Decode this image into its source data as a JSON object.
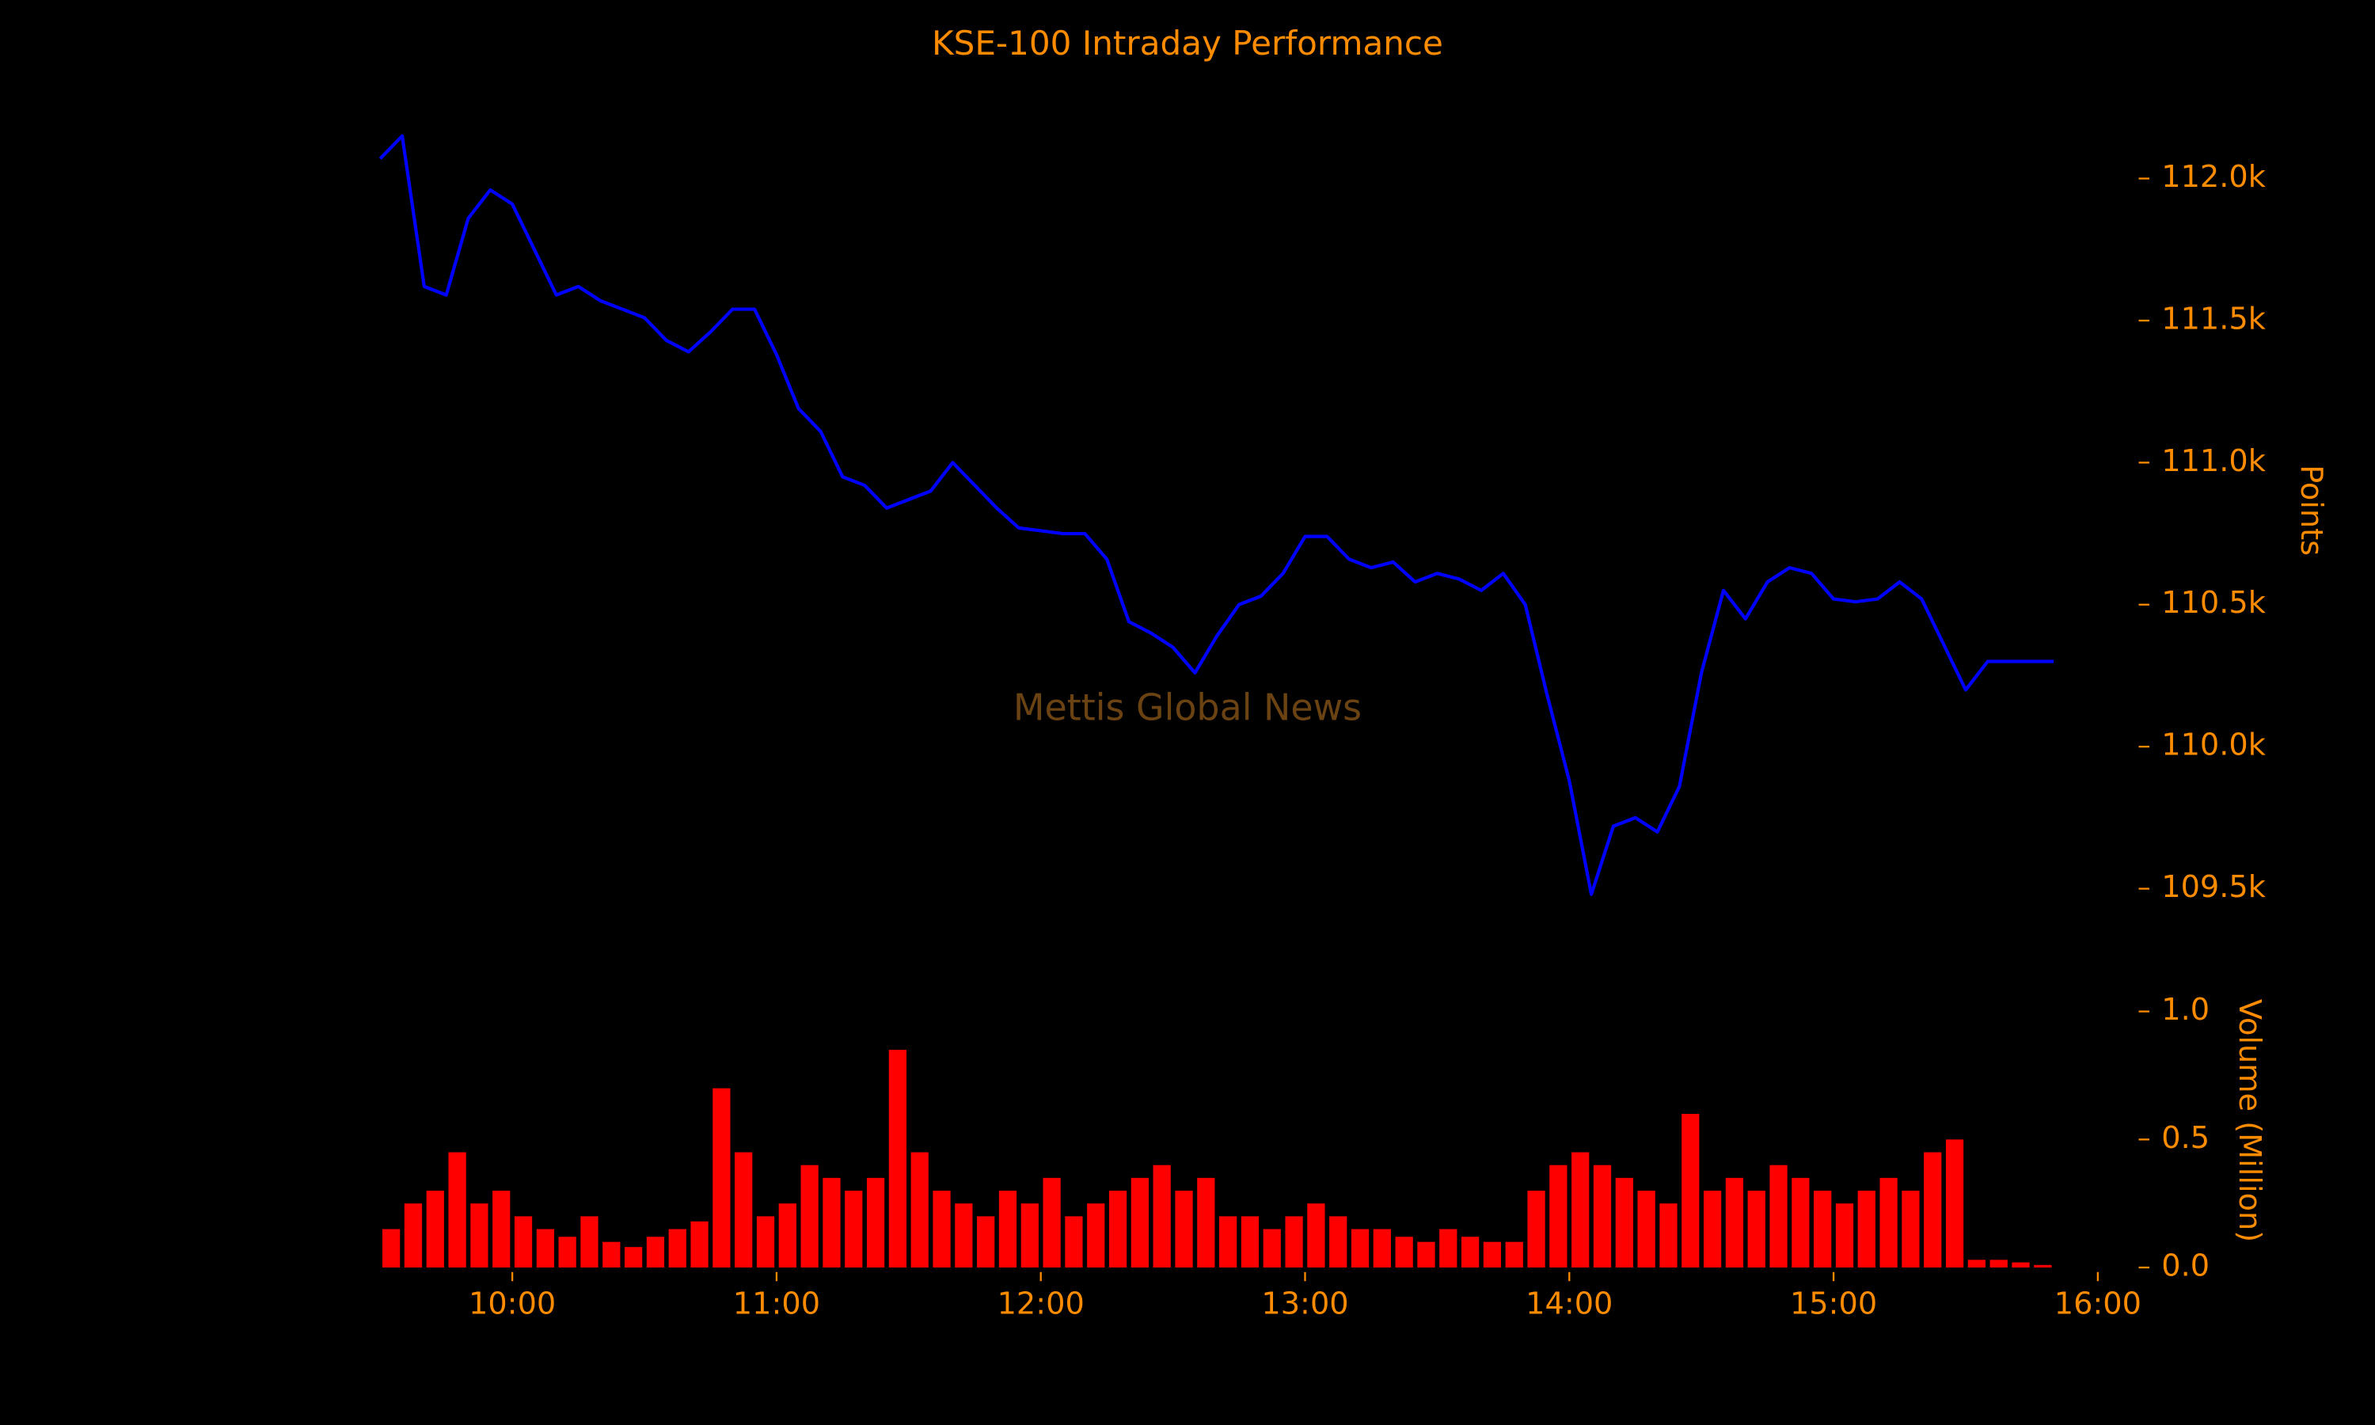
{
  "chart_data": [
    {
      "type": "line",
      "title": "KSE-100 Intraday Performance",
      "annotation": "Mettis Global News",
      "ylabel": "Points",
      "x": [
        "09:30",
        "09:35",
        "09:40",
        "09:45",
        "09:50",
        "09:55",
        "10:00",
        "10:05",
        "10:10",
        "10:15",
        "10:20",
        "10:25",
        "10:30",
        "10:35",
        "10:40",
        "10:45",
        "10:50",
        "10:55",
        "11:00",
        "11:05",
        "11:10",
        "11:15",
        "11:20",
        "11:25",
        "11:30",
        "11:35",
        "11:40",
        "11:45",
        "11:50",
        "11:55",
        "12:00",
        "12:05",
        "12:10",
        "12:15",
        "12:20",
        "12:25",
        "12:30",
        "12:35",
        "12:40",
        "12:45",
        "12:50",
        "12:55",
        "13:00",
        "13:05",
        "13:10",
        "13:15",
        "13:20",
        "13:25",
        "13:30",
        "13:35",
        "13:40",
        "13:45",
        "13:50",
        "13:55",
        "14:00",
        "14:05",
        "14:10",
        "14:15",
        "14:20",
        "14:25",
        "14:30",
        "14:35",
        "14:40",
        "14:45",
        "14:50",
        "14:55",
        "15:00",
        "15:05",
        "15:10",
        "15:15",
        "15:20",
        "15:25",
        "15:30",
        "15:35",
        "15:40",
        "15:45",
        "15:50"
      ],
      "series": [
        {
          "name": "KSE-100",
          "color": "#0000ff",
          "values": [
            112070,
            112150,
            111620,
            111590,
            111860,
            111960,
            111910,
            111750,
            111590,
            111620,
            111570,
            111540,
            111510,
            111430,
            111390,
            111460,
            111540,
            111540,
            111380,
            111190,
            111110,
            110950,
            110920,
            110840,
            110870,
            110900,
            111000,
            110920,
            110840,
            110770,
            110760,
            110750,
            110750,
            110660,
            110440,
            110400,
            110350,
            110260,
            110390,
            110500,
            110530,
            110610,
            110740,
            110740,
            110660,
            110630,
            110650,
            110580,
            110610,
            110590,
            110550,
            110610,
            110500,
            110180,
            109880,
            109480,
            109720,
            109750,
            109700,
            109860,
            110260,
            110550,
            110450,
            110580,
            110630,
            110610,
            110520,
            110510,
            110520,
            110580,
            110520,
            110360,
            110200,
            110300,
            110300,
            110300,
            110300
          ]
        }
      ],
      "xlim": [
        "09:30",
        "16:00"
      ],
      "ylim": [
        109350,
        112250
      ],
      "yticks": [
        {
          "value": 109500,
          "label": "109.5k"
        },
        {
          "value": 110000,
          "label": "110.0k"
        },
        {
          "value": 110500,
          "label": "110.5k"
        },
        {
          "value": 111000,
          "label": "111.0k"
        },
        {
          "value": 111500,
          "label": "111.5k"
        },
        {
          "value": 112000,
          "label": "112.0k"
        }
      ]
    },
    {
      "type": "bar",
      "ylabel": "Volume (Million)",
      "color": "#ff0000",
      "x": [
        "09:30",
        "09:35",
        "09:40",
        "09:45",
        "09:50",
        "09:55",
        "10:00",
        "10:05",
        "10:10",
        "10:15",
        "10:20",
        "10:25",
        "10:30",
        "10:35",
        "10:40",
        "10:45",
        "10:50",
        "10:55",
        "11:00",
        "11:05",
        "11:10",
        "11:15",
        "11:20",
        "11:25",
        "11:30",
        "11:35",
        "11:40",
        "11:45",
        "11:50",
        "11:55",
        "12:00",
        "12:05",
        "12:10",
        "12:15",
        "12:20",
        "12:25",
        "12:30",
        "12:35",
        "12:40",
        "12:45",
        "12:50",
        "12:55",
        "13:00",
        "13:05",
        "13:10",
        "13:15",
        "13:20",
        "13:25",
        "13:30",
        "13:35",
        "13:40",
        "13:45",
        "13:50",
        "13:55",
        "14:00",
        "14:05",
        "14:10",
        "14:15",
        "14:20",
        "14:25",
        "14:30",
        "14:35",
        "14:40",
        "14:45",
        "14:50",
        "14:55",
        "15:00",
        "15:05",
        "15:10",
        "15:15",
        "15:20",
        "15:25",
        "15:30",
        "15:35",
        "15:40",
        "15:45",
        "15:50"
      ],
      "values": [
        0.15,
        0.25,
        0.3,
        0.45,
        0.25,
        0.3,
        0.2,
        0.15,
        0.12,
        0.2,
        0.1,
        0.08,
        0.12,
        0.15,
        0.18,
        0.7,
        0.45,
        0.2,
        0.25,
        0.4,
        0.35,
        0.3,
        0.35,
        0.85,
        0.45,
        0.3,
        0.25,
        0.2,
        0.3,
        0.25,
        0.35,
        0.2,
        0.25,
        0.3,
        0.35,
        0.4,
        0.3,
        0.35,
        0.2,
        0.2,
        0.15,
        0.2,
        0.25,
        0.2,
        0.15,
        0.15,
        0.12,
        0.1,
        0.15,
        0.12,
        0.1,
        0.1,
        0.3,
        0.4,
        0.45,
        0.4,
        0.35,
        0.3,
        0.25,
        0.6,
        0.3,
        0.35,
        0.3,
        0.4,
        0.35,
        0.3,
        0.25,
        0.3,
        0.35,
        0.3,
        0.45,
        0.5,
        0.03,
        0.03,
        0.02,
        0.01,
        0.0
      ],
      "xlim": [
        "09:30",
        "16:00"
      ],
      "ylim": [
        0,
        1.1
      ],
      "yticks": [
        {
          "value": 0,
          "label": "0.0"
        },
        {
          "value": 0.5,
          "label": "0.5"
        },
        {
          "value": 1,
          "label": "1.0"
        }
      ],
      "xticks": [
        "10:00",
        "11:00",
        "12:00",
        "13:00",
        "14:00",
        "15:00",
        "16:00"
      ]
    }
  ]
}
